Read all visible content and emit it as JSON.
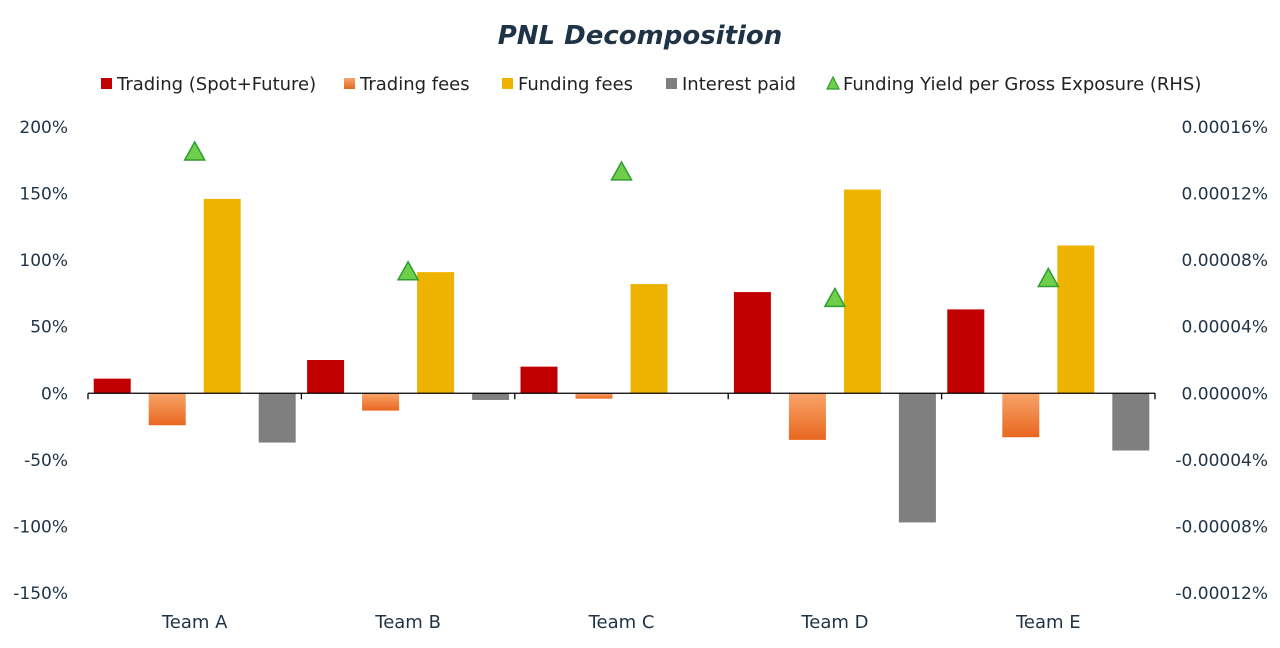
{
  "chart_data": {
    "type": "bar",
    "title": "PNL Decomposition",
    "categories": [
      "Team A",
      "Team B",
      "Team C",
      "Team D",
      "Team E"
    ],
    "series": [
      {
        "name": "Trading (Spot+Future)",
        "color": "#c00000",
        "values": [
          11,
          25,
          20,
          76,
          63
        ]
      },
      {
        "name": "Trading fees",
        "color": "#ed7d31",
        "values": [
          -24,
          -13,
          -4,
          -35,
          -33
        ]
      },
      {
        "name": "Funding fees",
        "color": "#eeb300",
        "values": [
          146,
          91,
          82,
          153,
          111
        ]
      },
      {
        "name": "Interest paid",
        "color": "#7f7f7f",
        "values": [
          -37,
          -5,
          0,
          -97,
          -43
        ]
      }
    ],
    "rhs_series": {
      "name": "Funding Yield per Gross Exposure (RHS)",
      "color": "#6fcf4a",
      "values": [
        0.000145,
        7.3e-05,
        0.000133,
        5.7e-05,
        6.9e-05
      ]
    },
    "ylim": [
      -150,
      200
    ],
    "y_ticks": [
      "200%",
      "150%",
      "100%",
      "50%",
      "0%",
      "-50%",
      "-100%",
      "-150%"
    ],
    "y2lim": [
      -0.00012,
      0.00016
    ],
    "y2_ticks": [
      "0.00016%",
      "0.00012%",
      "0.00008%",
      "0.00004%",
      "0.00000%",
      "-0.00004%",
      "-0.00008%",
      "-0.00012%"
    ],
    "legend_position": "top"
  }
}
